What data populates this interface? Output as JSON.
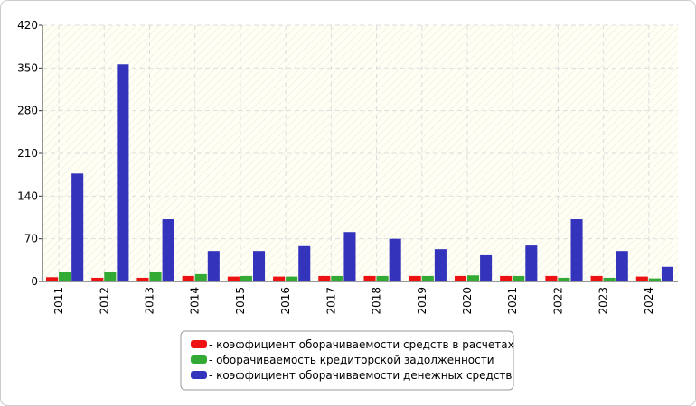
{
  "chart_data": {
    "type": "bar",
    "categories": [
      "2011",
      "2012",
      "2013",
      "2014",
      "2015",
      "2016",
      "2017",
      "2018",
      "2019",
      "2020",
      "2021",
      "2022",
      "2023",
      "2024"
    ],
    "series": [
      {
        "name": "- коэффициент оборачиваемости средств в расчетах",
        "color": "#ee1111",
        "values": [
          7,
          6,
          6,
          9,
          8,
          8,
          9,
          9,
          9,
          9,
          9,
          9,
          9,
          8
        ]
      },
      {
        "name": "- оборачиваемость кредиторской задолженности",
        "color": "#33aa33",
        "values": [
          15,
          15,
          15,
          12,
          9,
          8,
          9,
          9,
          9,
          10,
          9,
          6,
          6,
          5
        ]
      },
      {
        "name": "- коэффициент оборачиваемости денежных средств",
        "color": "#3333bb",
        "values": [
          177,
          356,
          102,
          50,
          50,
          58,
          81,
          70,
          53,
          43,
          59,
          102,
          50,
          24
        ]
      }
    ],
    "ylim": [
      0,
      420
    ],
    "yticks": [
      0,
      70,
      140,
      210,
      280,
      350,
      420
    ],
    "grid": true,
    "legend": "bottom"
  }
}
